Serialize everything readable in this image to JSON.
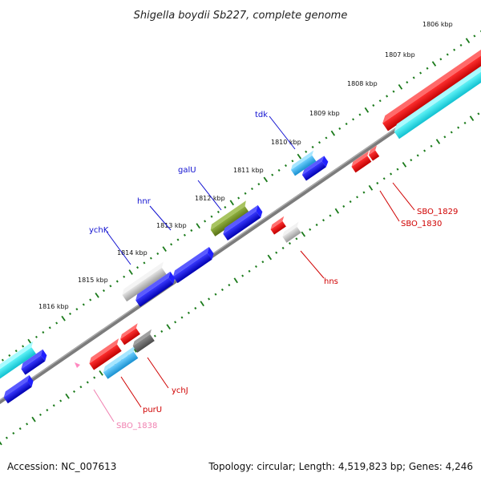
{
  "title": "Shigella boydii Sb227, complete genome",
  "footer": {
    "accession": "Accession: NC_007613",
    "summary": "Topology: circular; Length: 4,519,823 bp; Genes: 4,246"
  },
  "ticks": [
    "1806 kbp",
    "1807 kbp",
    "1808 kbp",
    "1809 kbp",
    "1810 kbp",
    "1811 kbp",
    "1812 kbp",
    "1813 kbp",
    "1814 kbp",
    "1815 kbp",
    "1816 kbp"
  ],
  "genes": {
    "tdk": "tdk",
    "galU": "galU",
    "hnr": "hnr",
    "ychK": "ychK",
    "hns": "hns",
    "SBO_1829": "SBO_1829",
    "SBO_1830": "SBO_1830",
    "purU": "purU",
    "ychJ": "ychJ",
    "SBO_1838": "SBO_1838"
  },
  "colors": {
    "backbone": "#8a8a8a",
    "tick": "#1a7a1a",
    "forward": "#0a00e0",
    "forward_alt": "#2db0e8",
    "reverse": "#e00000",
    "cyan": "#22e0e8",
    "olive": "#6f8f1e",
    "grey": "#b8b8b8",
    "dark_grey": "#6a6a6a",
    "pseudo": "#ff88c0",
    "label_blue": "#1010d0",
    "label_red": "#d00000",
    "label_pink": "#f080b0"
  }
}
